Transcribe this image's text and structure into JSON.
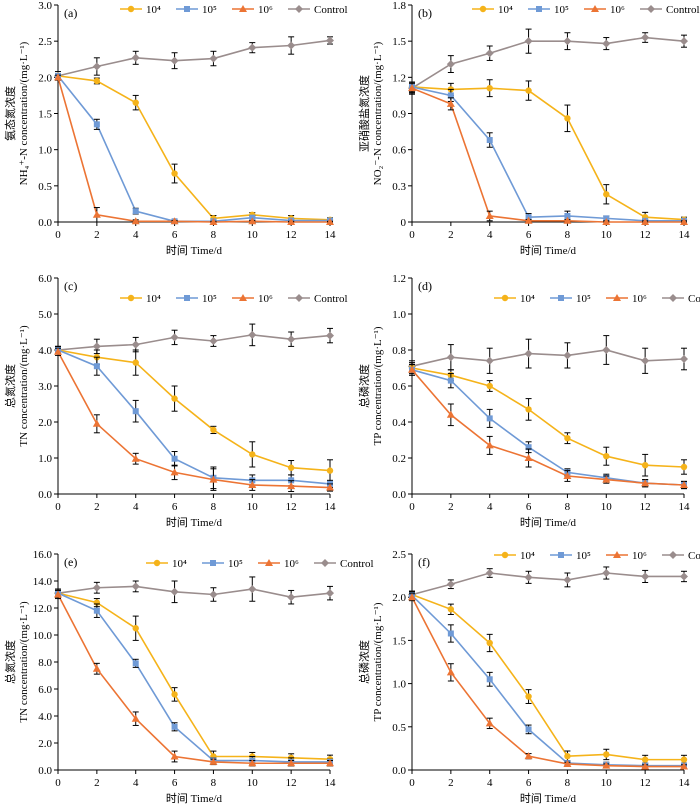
{
  "colors": {
    "1e4": "#f5b31a",
    "1e5": "#6f9ad6",
    "1e6": "#ec7434",
    "control": "#9a8d8d"
  },
  "chart_data": [
    {
      "panel": "(a)",
      "type": "line",
      "x": [
        0,
        2,
        4,
        6,
        8,
        10,
        12,
        14
      ],
      "xlabel": "时间 Time/d",
      "ylabel_cn": "氨态氮浓度",
      "ylabel_en": "NH₄⁺-N concentration/(mg·L⁻¹)",
      "ylim": [
        0,
        3
      ],
      "yticks": [
        "0.0",
        "0.5",
        "1.0",
        "1.5",
        "2.0",
        "2.5",
        "3.0"
      ],
      "legend": [
        "10⁴",
        "10⁵",
        "10⁶",
        "Control"
      ],
      "series": [
        {
          "name": "10⁴",
          "values": [
            2.02,
            1.95,
            1.65,
            0.67,
            0.05,
            0.1,
            0.05,
            0.03
          ],
          "err": [
            0.03,
            0.04,
            0.1,
            0.13,
            0.04,
            0.03,
            0.04,
            0.03
          ]
        },
        {
          "name": "10⁵",
          "values": [
            2.02,
            1.35,
            0.15,
            0.01,
            0.01,
            0.06,
            0.02,
            0.02
          ],
          "err": [
            0.03,
            0.07,
            0.04,
            0.02,
            0.02,
            0.03,
            0.02,
            0.02
          ]
        },
        {
          "name": "10⁶",
          "values": [
            2.0,
            0.1,
            0.01,
            0.01,
            0.0,
            0.01,
            0.0,
            0.0
          ],
          "err": [
            0.03,
            0.1,
            0.02,
            0.01,
            0.01,
            0.01,
            0.01,
            0.01
          ]
        },
        {
          "name": "Control",
          "values": [
            2.02,
            2.15,
            2.27,
            2.23,
            2.26,
            2.41,
            2.44,
            2.51
          ],
          "err": [
            0.06,
            0.12,
            0.09,
            0.11,
            0.1,
            0.07,
            0.12,
            0.05
          ]
        }
      ]
    },
    {
      "panel": "(b)",
      "type": "line",
      "x": [
        0,
        2,
        4,
        6,
        8,
        10,
        12,
        14
      ],
      "xlabel": "时间 Time/d",
      "ylabel_cn": "亚硝酸盐氮浓度",
      "ylabel_en": "NO₂⁻-N concentration/(mg·L⁻¹)",
      "ylim": [
        0,
        1.8
      ],
      "yticks": [
        "0",
        "0.3",
        "0.6",
        "0.9",
        "1.2",
        "1.5",
        "1.8"
      ],
      "legend": [
        "10⁴",
        "10⁵",
        "10⁶",
        "Control"
      ],
      "series": [
        {
          "name": "10⁴",
          "values": [
            1.12,
            1.1,
            1.11,
            1.09,
            0.86,
            0.23,
            0.04,
            0.02
          ],
          "err": [
            0.04,
            0.05,
            0.07,
            0.08,
            0.11,
            0.08,
            0.04,
            0.02
          ]
        },
        {
          "name": "10⁵",
          "values": [
            1.12,
            1.05,
            0.68,
            0.04,
            0.05,
            0.03,
            0.01,
            0.01
          ],
          "err": [
            0.04,
            0.05,
            0.06,
            0.03,
            0.04,
            0.02,
            0.01,
            0.01
          ]
        },
        {
          "name": "10⁶",
          "values": [
            1.11,
            0.98,
            0.05,
            0.01,
            0.01,
            0.0,
            0.0,
            0.0
          ],
          "err": [
            0.04,
            0.05,
            0.04,
            0.01,
            0.01,
            0.01,
            0.01,
            0.01
          ]
        },
        {
          "name": "Control",
          "values": [
            1.11,
            1.31,
            1.4,
            1.5,
            1.5,
            1.48,
            1.53,
            1.5
          ],
          "err": [
            0.05,
            0.07,
            0.06,
            0.1,
            0.07,
            0.05,
            0.04,
            0.05
          ]
        }
      ]
    },
    {
      "panel": "(c)",
      "type": "line",
      "x": [
        0,
        2,
        4,
        6,
        8,
        10,
        12,
        14
      ],
      "xlabel": "时间 Time/d",
      "ylabel_cn": "总氮浓度",
      "ylabel_en": "TN concentration/(mg·L⁻¹)",
      "ylim": [
        0,
        6
      ],
      "yticks": [
        "0.0",
        "1.0",
        "2.0",
        "3.0",
        "4.0",
        "5.0",
        "6.0"
      ],
      "legend": [
        "10⁴",
        "10⁵",
        "10⁶",
        "Control"
      ],
      "series": [
        {
          "name": "10⁴",
          "values": [
            4.0,
            3.8,
            3.65,
            2.65,
            1.78,
            1.1,
            0.73,
            0.65
          ],
          "err": [
            0.1,
            0.2,
            0.35,
            0.35,
            0.1,
            0.35,
            0.2,
            0.3
          ]
        },
        {
          "name": "10⁵",
          "values": [
            4.0,
            3.55,
            2.3,
            0.98,
            0.45,
            0.38,
            0.38,
            0.28
          ],
          "err": [
            0.1,
            0.25,
            0.3,
            0.2,
            0.3,
            0.15,
            0.15,
            0.1
          ]
        },
        {
          "name": "10⁶",
          "values": [
            3.95,
            1.95,
            0.98,
            0.6,
            0.4,
            0.25,
            0.22,
            0.18
          ],
          "err": [
            0.1,
            0.25,
            0.15,
            0.2,
            0.3,
            0.15,
            0.15,
            0.1
          ]
        },
        {
          "name": "Control",
          "values": [
            4.0,
            4.1,
            4.15,
            4.35,
            4.25,
            4.42,
            4.3,
            4.4
          ],
          "err": [
            0.1,
            0.2,
            0.2,
            0.2,
            0.15,
            0.3,
            0.2,
            0.2
          ]
        }
      ]
    },
    {
      "panel": "(d)",
      "type": "line",
      "x": [
        0,
        2,
        4,
        6,
        8,
        10,
        12,
        14
      ],
      "xlabel": "时间 Time/d",
      "ylabel_cn": "总磷浓度",
      "ylabel_en": "TP concentration/(mg·L⁻¹)",
      "ylim": [
        0,
        1.2
      ],
      "yticks": [
        "0.0",
        "0.2",
        "0.4",
        "0.6",
        "0.8",
        "1.0",
        "1.2"
      ],
      "legend": [
        "10⁴",
        "10⁵",
        "10⁶",
        "Control"
      ],
      "series": [
        {
          "name": "10⁴",
          "values": [
            0.7,
            0.66,
            0.6,
            0.47,
            0.31,
            0.21,
            0.16,
            0.15
          ],
          "err": [
            0.03,
            0.03,
            0.03,
            0.06,
            0.03,
            0.05,
            0.06,
            0.04
          ]
        },
        {
          "name": "10⁵",
          "values": [
            0.69,
            0.63,
            0.42,
            0.26,
            0.12,
            0.09,
            0.06,
            0.05
          ],
          "err": [
            0.03,
            0.04,
            0.05,
            0.03,
            0.02,
            0.02,
            0.02,
            0.02
          ]
        },
        {
          "name": "10⁶",
          "values": [
            0.69,
            0.44,
            0.27,
            0.2,
            0.1,
            0.08,
            0.06,
            0.05
          ],
          "err": [
            0.03,
            0.06,
            0.05,
            0.05,
            0.03,
            0.02,
            0.02,
            0.02
          ]
        },
        {
          "name": "Control",
          "values": [
            0.71,
            0.76,
            0.74,
            0.78,
            0.77,
            0.8,
            0.74,
            0.75
          ],
          "err": [
            0.03,
            0.07,
            0.07,
            0.08,
            0.07,
            0.08,
            0.07,
            0.06
          ]
        }
      ]
    },
    {
      "panel": "(e)",
      "type": "line",
      "x": [
        0,
        2,
        4,
        6,
        8,
        10,
        12,
        14
      ],
      "xlabel": "时间 Time/d",
      "ylabel_cn": "总氮浓度",
      "ylabel_en": "TN concentration/(mg·L⁻¹)",
      "ylim": [
        0,
        16
      ],
      "yticks": [
        "0.0",
        "2.0",
        "4.0",
        "6.0",
        "8.0",
        "10.0",
        "12.0",
        "14.0",
        "16.0"
      ],
      "legend": [
        "10⁴",
        "10⁵",
        "10⁶",
        "Control"
      ],
      "series": [
        {
          "name": "10⁴",
          "values": [
            13.1,
            12.4,
            10.5,
            5.6,
            1.0,
            1.0,
            0.9,
            0.8
          ],
          "err": [
            0.3,
            0.3,
            0.9,
            0.5,
            0.4,
            0.3,
            0.3,
            0.3
          ]
        },
        {
          "name": "10⁵",
          "values": [
            13.1,
            11.8,
            7.9,
            3.2,
            0.7,
            0.7,
            0.6,
            0.6
          ],
          "err": [
            0.3,
            0.5,
            0.3,
            0.3,
            0.2,
            0.3,
            0.3,
            0.2
          ]
        },
        {
          "name": "10⁶",
          "values": [
            13.0,
            7.5,
            3.8,
            1.0,
            0.6,
            0.5,
            0.5,
            0.5
          ],
          "err": [
            0.3,
            0.4,
            0.5,
            0.4,
            0.2,
            0.2,
            0.2,
            0.2
          ]
        },
        {
          "name": "Control",
          "values": [
            13.1,
            13.5,
            13.6,
            13.2,
            13.0,
            13.4,
            12.8,
            13.1
          ],
          "err": [
            0.3,
            0.4,
            0.4,
            0.8,
            0.5,
            0.9,
            0.5,
            0.5
          ]
        }
      ]
    },
    {
      "panel": "(f)",
      "type": "line",
      "x": [
        0,
        2,
        4,
        6,
        8,
        10,
        12,
        14
      ],
      "xlabel": "时间 Time/d",
      "ylabel_cn": "总磷浓度",
      "ylabel_en": "TP concentration/(mg·L⁻¹)",
      "ylim": [
        0,
        2.5
      ],
      "yticks": [
        "0.0",
        "0.5",
        "1.0",
        "1.5",
        "2.0",
        "2.5"
      ],
      "legend": [
        "10⁴",
        "10⁵",
        "10⁶",
        "Control"
      ],
      "series": [
        {
          "name": "10⁴",
          "values": [
            2.03,
            1.86,
            1.47,
            0.85,
            0.16,
            0.18,
            0.12,
            0.12
          ],
          "err": [
            0.04,
            0.06,
            0.1,
            0.08,
            0.06,
            0.06,
            0.05,
            0.05
          ]
        },
        {
          "name": "10⁵",
          "values": [
            2.02,
            1.58,
            1.05,
            0.47,
            0.08,
            0.06,
            0.05,
            0.05
          ],
          "err": [
            0.04,
            0.1,
            0.08,
            0.05,
            0.03,
            0.03,
            0.03,
            0.03
          ]
        },
        {
          "name": "10⁶",
          "values": [
            2.0,
            1.13,
            0.54,
            0.16,
            0.07,
            0.05,
            0.04,
            0.04
          ],
          "err": [
            0.04,
            0.1,
            0.06,
            0.03,
            0.02,
            0.02,
            0.02,
            0.02
          ]
        },
        {
          "name": "Control",
          "values": [
            2.03,
            2.15,
            2.28,
            2.23,
            2.2,
            2.28,
            2.24,
            2.24
          ],
          "err": [
            0.04,
            0.05,
            0.05,
            0.07,
            0.08,
            0.07,
            0.07,
            0.06
          ]
        }
      ]
    }
  ]
}
